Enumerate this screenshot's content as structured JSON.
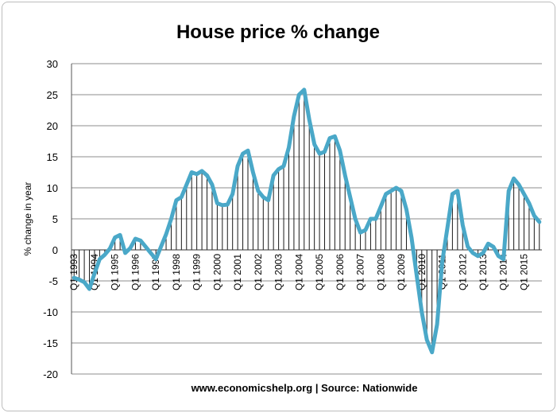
{
  "chart_data": {
    "type": "line",
    "title": "House price % change",
    "ylabel": "% change in year",
    "xlabel": "",
    "source_note": "www.economicshelp.org | Source: Nationwide",
    "ylim": [
      -20,
      30
    ],
    "yticks": [
      30,
      25,
      20,
      15,
      10,
      5,
      0,
      -5,
      -10,
      -15,
      -20
    ],
    "ytick_labels": [
      "30",
      "25",
      "20",
      "15",
      "10",
      "5",
      "0",
      "-5",
      "-10",
      "-15",
      "-20"
    ],
    "grid": true,
    "legend": "none",
    "drop_lines": true,
    "line_color": "#4aa8c8",
    "x_start": "Q1 1993",
    "x_frequency": "quarterly",
    "xtick_labels": [
      "Q1 1993",
      "Q1 1994",
      "Q1 1995",
      "Q1 1996",
      "Q1 1997",
      "Q1 1998",
      "Q1 1999",
      "Q1 2000",
      "Q1 2001",
      "Q1 2002",
      "Q1 2003",
      "Q1 2004",
      "Q1 2005",
      "Q1 2006",
      "Q1 2007",
      "Q1 2008",
      "Q1 2009",
      "Q1 2010",
      "Q1 2011",
      "Q1 2012",
      "Q1 2013",
      "Q1 2014",
      "Q1 2015"
    ],
    "values": [
      -4.5,
      -4.8,
      -5.2,
      -6.3,
      -3.8,
      -1.5,
      -0.8,
      0.2,
      2.0,
      2.4,
      -0.5,
      0.3,
      1.8,
      1.5,
      0.5,
      -0.5,
      -1.5,
      0.5,
      2.5,
      5.0,
      8.0,
      8.5,
      10.5,
      12.5,
      12.2,
      12.7,
      12.0,
      10.5,
      7.5,
      7.2,
      7.3,
      9.0,
      13.5,
      15.5,
      16.0,
      12.5,
      9.5,
      8.5,
      8.0,
      12.0,
      13.0,
      13.5,
      16.5,
      21.5,
      25.0,
      25.8,
      21.0,
      17.0,
      15.5,
      15.8,
      18.0,
      18.3,
      16.0,
      12.0,
      8.5,
      5.0,
      2.8,
      3.2,
      5.0,
      5.0,
      7.0,
      9.0,
      9.5,
      10.0,
      9.5,
      6.5,
      2.0,
      -4.0,
      -10.0,
      -14.5,
      -16.5,
      -12.0,
      -2.0,
      3.5,
      9.0,
      9.5,
      4.0,
      0.5,
      -0.5,
      -1.0,
      -0.5,
      1.0,
      0.5,
      -1.0,
      -1.5,
      9.5,
      11.5,
      10.5,
      9.0,
      7.5,
      5.5,
      4.5
    ]
  }
}
